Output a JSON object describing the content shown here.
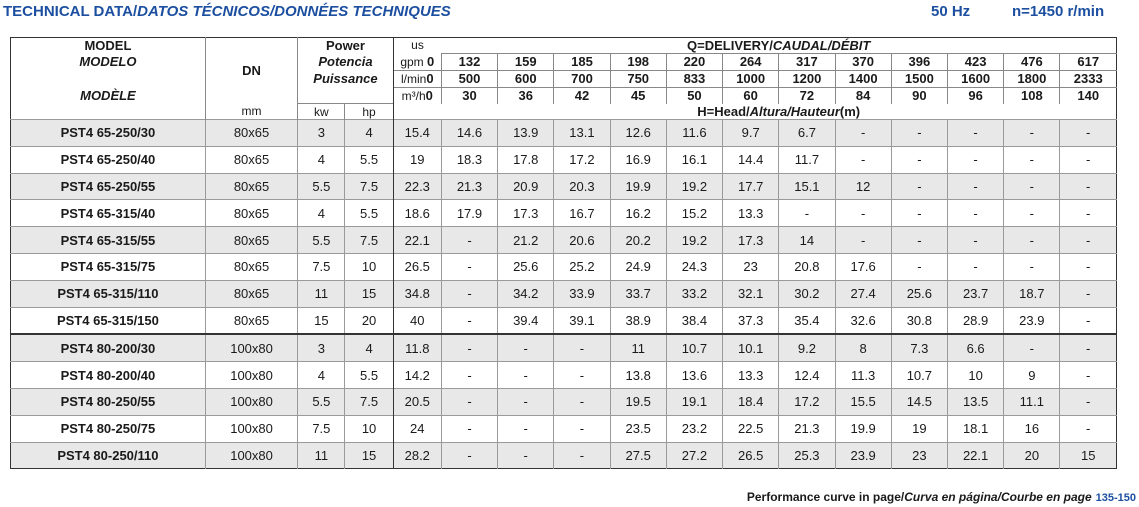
{
  "header": {
    "title_en": "TECHNICAL DATA/",
    "title_other": "DATOS TÉCNICOS/DONNÉES TECHNIQUES",
    "frequency": "50 Hz",
    "speed": "n=1450 r/min"
  },
  "table": {
    "model_label": "MODEL",
    "model_es": "MODELO",
    "model_fr": "MODÈLE",
    "dn_label": "DN",
    "dn_unit": "mm",
    "power_label": "Power",
    "power_es": "Potencia",
    "power_fr": "Puissance",
    "kw_unit": "kw",
    "hp_unit": "hp",
    "us_label": "us",
    "gpm_label": "gpm",
    "lmin_label": "l/min",
    "m3h_label": "m³/h",
    "delivery_en": "Q=DELIVERY/",
    "delivery_other": "CAUDAL/DÉBIT",
    "head_en": "H=Head/",
    "head_other": "Altura/Hauteur",
    "head_unit": "(m)",
    "gpm": [
      "0",
      "132",
      "159",
      "185",
      "198",
      "220",
      "264",
      "317",
      "370",
      "396",
      "423",
      "476",
      "617"
    ],
    "lmin": [
      "0",
      "500",
      "600",
      "700",
      "750",
      "833",
      "1000",
      "1200",
      "1400",
      "1500",
      "1600",
      "1800",
      "2333"
    ],
    "m3h": [
      "0",
      "30",
      "36",
      "42",
      "45",
      "50",
      "60",
      "72",
      "84",
      "90",
      "96",
      "108",
      "140"
    ],
    "rows": [
      {
        "model": "PST4 65-250/30",
        "dn": "80x65",
        "kw": "3",
        "hp": "4",
        "h": [
          "15.4",
          "14.6",
          "13.9",
          "13.1",
          "12.6",
          "11.6",
          "9.7",
          "6.7",
          "-",
          "-",
          "-",
          "-",
          "-"
        ]
      },
      {
        "model": "PST4 65-250/40",
        "dn": "80x65",
        "kw": "4",
        "hp": "5.5",
        "h": [
          "19",
          "18.3",
          "17.8",
          "17.2",
          "16.9",
          "16.1",
          "14.4",
          "11.7",
          "-",
          "-",
          "-",
          "-",
          "-"
        ]
      },
      {
        "model": "PST4 65-250/55",
        "dn": "80x65",
        "kw": "5.5",
        "hp": "7.5",
        "h": [
          "22.3",
          "21.3",
          "20.9",
          "20.3",
          "19.9",
          "19.2",
          "17.7",
          "15.1",
          "12",
          "-",
          "-",
          "-",
          "-"
        ]
      },
      {
        "model": "PST4 65-315/40",
        "dn": "80x65",
        "kw": "4",
        "hp": "5.5",
        "h": [
          "18.6",
          "17.9",
          "17.3",
          "16.7",
          "16.2",
          "15.2",
          "13.3",
          "-",
          "-",
          "-",
          "-",
          "-",
          "-"
        ]
      },
      {
        "model": "PST4 65-315/55",
        "dn": "80x65",
        "kw": "5.5",
        "hp": "7.5",
        "h": [
          "22.1",
          "-",
          "21.2",
          "20.6",
          "20.2",
          "19.2",
          "17.3",
          "14",
          "-",
          "-",
          "-",
          "-",
          "-"
        ]
      },
      {
        "model": "PST4 65-315/75",
        "dn": "80x65",
        "kw": "7.5",
        "hp": "10",
        "h": [
          "26.5",
          "-",
          "25.6",
          "25.2",
          "24.9",
          "24.3",
          "23",
          "20.8",
          "17.6",
          "-",
          "-",
          "-",
          "-"
        ]
      },
      {
        "model": "PST4 65-315/110",
        "dn": "80x65",
        "kw": "11",
        "hp": "15",
        "h": [
          "34.8",
          "-",
          "34.2",
          "33.9",
          "33.7",
          "33.2",
          "32.1",
          "30.2",
          "27.4",
          "25.6",
          "23.7",
          "18.7",
          "-"
        ]
      },
      {
        "model": "PST4 65-315/150",
        "dn": "80x65",
        "kw": "15",
        "hp": "20",
        "h": [
          "40",
          "-",
          "39.4",
          "39.1",
          "38.9",
          "38.4",
          "37.3",
          "35.4",
          "32.6",
          "30.8",
          "28.9",
          "23.9",
          "-"
        ]
      },
      {
        "model": "PST4 80-200/30",
        "dn": "100x80",
        "kw": "3",
        "hp": "4",
        "h": [
          "11.8",
          "-",
          "-",
          "-",
          "11",
          "10.7",
          "10.1",
          "9.2",
          "8",
          "7.3",
          "6.6",
          "-",
          "-"
        ]
      },
      {
        "model": "PST4 80-200/40",
        "dn": "100x80",
        "kw": "4",
        "hp": "5.5",
        "h": [
          "14.2",
          "-",
          "-",
          "-",
          "13.8",
          "13.6",
          "13.3",
          "12.4",
          "11.3",
          "10.7",
          "10",
          "9",
          "-"
        ]
      },
      {
        "model": "PST4 80-250/55",
        "dn": "100x80",
        "kw": "5.5",
        "hp": "7.5",
        "h": [
          "20.5",
          "-",
          "-",
          "-",
          "19.5",
          "19.1",
          "18.4",
          "17.2",
          "15.5",
          "14.5",
          "13.5",
          "11.1",
          "-"
        ]
      },
      {
        "model": "PST4 80-250/75",
        "dn": "100x80",
        "kw": "7.5",
        "hp": "10",
        "h": [
          "24",
          "-",
          "-",
          "-",
          "23.5",
          "23.2",
          "22.5",
          "21.3",
          "19.9",
          "19",
          "18.1",
          "16",
          "-"
        ]
      },
      {
        "model": "PST4 80-250/110",
        "dn": "100x80",
        "kw": "11",
        "hp": "15",
        "h": [
          "28.2",
          "-",
          "-",
          "-",
          "27.5",
          "27.2",
          "26.5",
          "25.3",
          "23.9",
          "23",
          "22.1",
          "20",
          "15"
        ]
      }
    ]
  },
  "footer": {
    "text_en": "Performance curve in page/",
    "text_other": "Curva en página/Courbe en page",
    "pages": "135-150"
  },
  "colors": {
    "brand_blue": "#1c4fa0",
    "row_shade": "#e8e8e8"
  }
}
